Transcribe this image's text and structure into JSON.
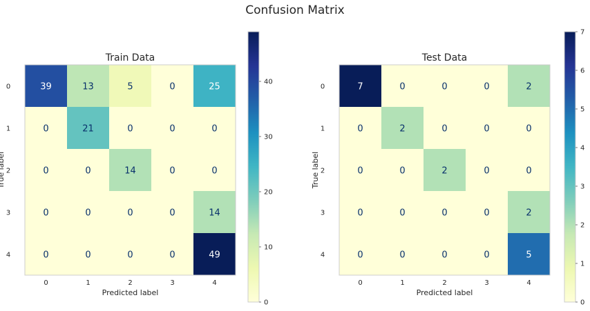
{
  "title": "Confusion Matrix",
  "colors": {
    "scale": [
      "#ffffd9",
      "#edf8b1",
      "#c7e9b4",
      "#7fcdbb",
      "#41b6c4",
      "#1d91c0",
      "#225ea8",
      "#253494",
      "#081d58"
    ],
    "light_text": "#ffffff",
    "dark_text": "#08306b",
    "frame": "#cccccc",
    "tick_text": "#262626"
  },
  "chart_data": [
    {
      "type": "heatmap",
      "title": "Train Data",
      "xlabel": "Predicted label",
      "ylabel": "True label",
      "x_categories": [
        "0",
        "1",
        "2",
        "3",
        "4"
      ],
      "y_categories": [
        "0",
        "1",
        "2",
        "3",
        "4"
      ],
      "matrix": [
        [
          39,
          13,
          5,
          0,
          25
        ],
        [
          0,
          21,
          0,
          0,
          0
        ],
        [
          0,
          0,
          14,
          0,
          0
        ],
        [
          0,
          0,
          0,
          0,
          14
        ],
        [
          0,
          0,
          0,
          0,
          49
        ]
      ],
      "cell_labels": [
        [
          "39",
          "13",
          "5",
          "0",
          "25"
        ],
        [
          "0",
          "21",
          "0",
          "0",
          "0"
        ],
        [
          "0",
          "0",
          "14",
          "0",
          "0"
        ],
        [
          "0",
          "0",
          "0",
          "0",
          "14"
        ],
        [
          "0",
          "0",
          "0",
          "0",
          "49"
        ]
      ],
      "colorbar": {
        "min": 0,
        "max": 49,
        "ticks": [
          0,
          10,
          20,
          30,
          40
        ],
        "tick_labels": [
          "0",
          "10",
          "20",
          "30",
          "40"
        ]
      },
      "grid": false
    },
    {
      "type": "heatmap",
      "title": "Test Data",
      "xlabel": "Predicted label",
      "ylabel": "True label",
      "x_categories": [
        "0",
        "1",
        "2",
        "3",
        "4"
      ],
      "y_categories": [
        "0",
        "1",
        "2",
        "3",
        "4"
      ],
      "matrix": [
        [
          7,
          0,
          0,
          0,
          2
        ],
        [
          0,
          2,
          0,
          0,
          0
        ],
        [
          0,
          0,
          2,
          0,
          0
        ],
        [
          0,
          0,
          0,
          0,
          2
        ],
        [
          0,
          0,
          0,
          0,
          5
        ]
      ],
      "cell_labels": [
        [
          "7",
          "0",
          "0",
          "0",
          "2"
        ],
        [
          "0",
          "2",
          "0",
          "0",
          "0"
        ],
        [
          "0",
          "0",
          "2",
          "0",
          "0"
        ],
        [
          "0",
          "0",
          "0",
          "0",
          "2"
        ],
        [
          "0",
          "0",
          "0",
          "0",
          "5"
        ]
      ],
      "colorbar": {
        "min": 0,
        "max": 7,
        "ticks": [
          0,
          1,
          2,
          3,
          4,
          5,
          6,
          7
        ],
        "tick_labels": [
          "0",
          "1",
          "2",
          "3",
          "4",
          "5",
          "6",
          "7"
        ]
      },
      "grid": false
    }
  ]
}
